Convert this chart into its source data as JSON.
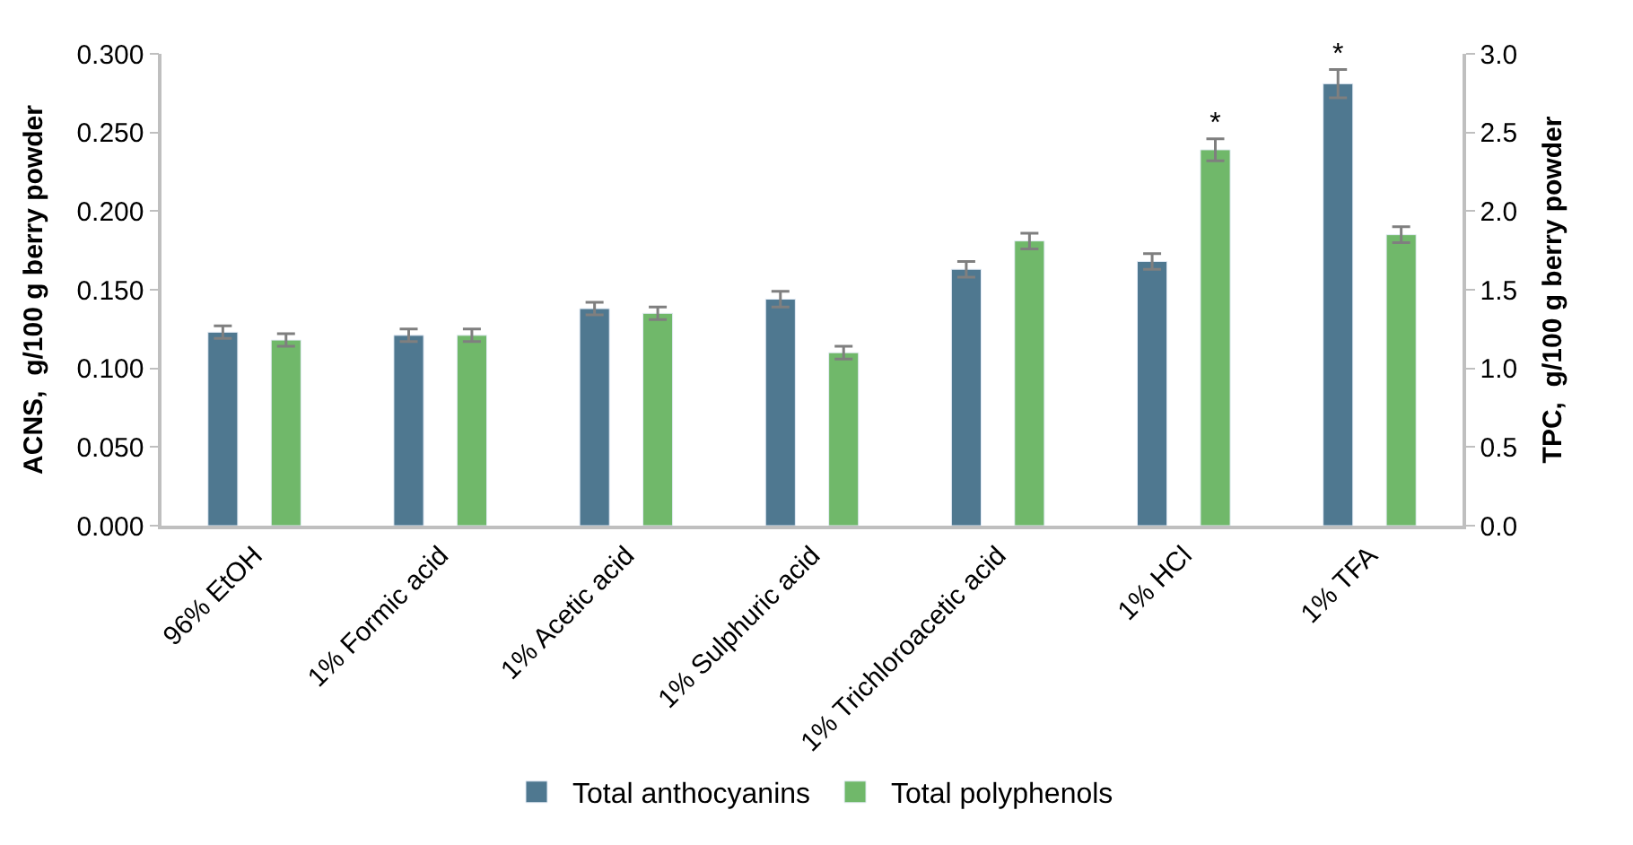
{
  "chart_data": {
    "type": "bar",
    "categories": [
      "96% EtOH",
      "1% Formic acid",
      "1% Acetic acid",
      "1% Sulphuric acid",
      "1% Trichloroacetic acid",
      "1% HCl",
      "1% TFA"
    ],
    "series": [
      {
        "name": "Total anthocyanins",
        "color": "#4f7890",
        "values": [
          0.123,
          0.121,
          0.138,
          0.144,
          0.163,
          0.168,
          0.281
        ],
        "errors": [
          0.004,
          0.004,
          0.004,
          0.005,
          0.005,
          0.005,
          0.009
        ],
        "value_labels": [
          null,
          null,
          null,
          null,
          null,
          null,
          "*"
        ]
      },
      {
        "name": "Total polyphenols",
        "color": "#70b86a",
        "axis": "y2",
        "values": [
          1.18,
          1.21,
          1.35,
          1.1,
          1.81,
          2.39,
          1.85
        ],
        "errors": [
          0.04,
          0.04,
          0.04,
          0.04,
          0.05,
          0.07,
          0.05
        ],
        "value_labels": [
          null,
          null,
          null,
          null,
          null,
          "*",
          null
        ]
      }
    ],
    "ylabel": "ACNS,  g/100 g berry powder",
    "y2label": "TPC,  g/100 g berry powder",
    "ylim": [
      0,
      0.3
    ],
    "yticks": [
      {
        "value": 0,
        "label": "0.000"
      },
      {
        "value": 0.05,
        "label": "0.050"
      },
      {
        "value": 0.1,
        "label": "0.100"
      },
      {
        "value": 0.15,
        "label": "0.150"
      },
      {
        "value": 0.2,
        "label": "0.200"
      },
      {
        "value": 0.25,
        "label": "0.250"
      },
      {
        "value": 0.3,
        "label": "0.300"
      }
    ],
    "y2lim": [
      0,
      3
    ],
    "y2ticks": [
      {
        "value": 0,
        "label": "0.0"
      },
      {
        "value": 0.5,
        "label": "0.5"
      },
      {
        "value": 1,
        "label": "1.0"
      },
      {
        "value": 1.5,
        "label": "1.5"
      },
      {
        "value": 2,
        "label": "2.0"
      },
      {
        "value": 2.5,
        "label": "2.5"
      },
      {
        "value": 3,
        "label": "3.0"
      }
    ],
    "legend": "bottom"
  }
}
